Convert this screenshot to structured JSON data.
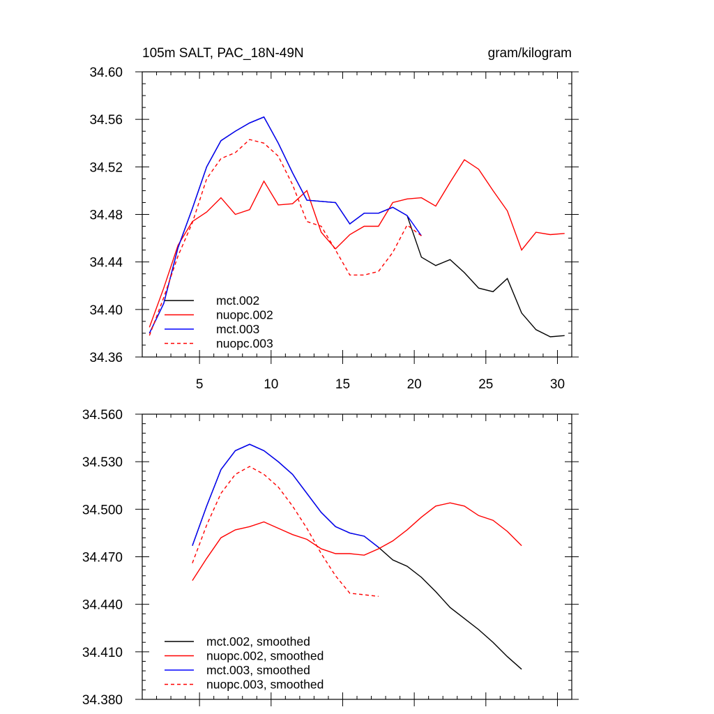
{
  "chart_data": [
    {
      "type": "line",
      "title_left": "105m SALT, PAC_18N-49N",
      "title_right": "gram/kilogram",
      "xlim": [
        1,
        31
      ],
      "ylim": [
        34.36,
        34.6
      ],
      "xticks": [
        5,
        10,
        15,
        20,
        25,
        30
      ],
      "yticks": [
        34.36,
        34.4,
        34.44,
        34.48,
        34.52,
        34.56,
        34.6
      ],
      "ytick_labels": [
        "34.36",
        "34.40",
        "34.44",
        "34.48",
        "34.52",
        "34.56",
        "34.60"
      ],
      "legend_position": "bottom-left",
      "series": [
        {
          "name": "mct.002",
          "color": "#000000",
          "dash": "solid",
          "x": [
            1.5,
            2.5,
            3.5,
            4.5,
            5.5,
            6.5,
            7.5,
            8.5,
            9.5,
            10.5,
            11.5,
            12.5,
            13.5,
            14.5,
            15.5,
            16.5,
            17.5,
            18.5,
            19.5,
            20.5,
            21.5,
            22.5,
            23.5,
            24.5,
            25.5,
            26.5,
            27.5,
            28.5,
            29.5,
            30.5
          ],
          "y": [
            34.38,
            34.405,
            34.452,
            34.485,
            34.52,
            34.542,
            34.55,
            34.557,
            34.562,
            34.54,
            34.515,
            34.492,
            34.491,
            34.49,
            34.472,
            34.481,
            34.481,
            34.486,
            34.479,
            34.444,
            34.437,
            34.442,
            34.431,
            34.418,
            34.415,
            34.426,
            34.397,
            34.383,
            34.377,
            34.378
          ]
        },
        {
          "name": "nuopc.002",
          "color": "#ff0000",
          "dash": "solid",
          "x": [
            1.5,
            2.5,
            3.5,
            4.5,
            5.5,
            6.5,
            7.5,
            8.5,
            9.5,
            10.5,
            11.5,
            12.5,
            13.5,
            14.5,
            15.5,
            16.5,
            17.5,
            18.5,
            19.5,
            20.5,
            21.5,
            22.5,
            23.5,
            24.5,
            25.5,
            26.5,
            27.5,
            28.5,
            29.5,
            30.5
          ],
          "y": [
            34.385,
            34.418,
            34.454,
            34.474,
            34.482,
            34.494,
            34.48,
            34.484,
            34.508,
            34.488,
            34.489,
            34.5,
            34.465,
            34.451,
            34.463,
            34.47,
            34.47,
            34.49,
            34.493,
            34.494,
            34.487,
            34.507,
            34.526,
            34.518,
            34.5,
            34.483,
            34.45,
            34.465,
            34.463,
            34.464
          ]
        },
        {
          "name": "mct.003",
          "color": "#0000ff",
          "dash": "solid",
          "x": [
            1.5,
            2.5,
            3.5,
            4.5,
            5.5,
            6.5,
            7.5,
            8.5,
            9.5,
            10.5,
            11.5,
            12.5,
            13.5,
            14.5,
            15.5,
            16.5,
            17.5,
            18.5,
            19.5,
            20.5
          ],
          "y": [
            34.38,
            34.405,
            34.452,
            34.485,
            34.52,
            34.542,
            34.55,
            34.557,
            34.562,
            34.54,
            34.515,
            34.492,
            34.491,
            34.49,
            34.472,
            34.481,
            34.481,
            34.486,
            34.479,
            34.462
          ]
        },
        {
          "name": "nuopc.003",
          "color": "#ff0000",
          "dash": "dashed",
          "x": [
            1.5,
            2.5,
            3.5,
            4.5,
            5.5,
            6.5,
            7.5,
            8.5,
            9.5,
            10.5,
            11.5,
            12.5,
            13.5,
            14.5,
            15.5,
            16.5,
            17.5,
            18.5,
            19.5,
            20.5
          ],
          "y": [
            34.378,
            34.41,
            34.445,
            34.473,
            34.51,
            34.527,
            34.532,
            34.543,
            34.54,
            34.529,
            34.505,
            34.474,
            34.47,
            34.45,
            34.429,
            34.429,
            34.432,
            34.448,
            34.471,
            34.462
          ]
        }
      ]
    },
    {
      "type": "line",
      "xlim": [
        1,
        31
      ],
      "ylim": [
        34.38,
        34.56
      ],
      "xticks": [
        5,
        10,
        15,
        20,
        25,
        30
      ],
      "yticks": [
        34.38,
        34.41,
        34.44,
        34.47,
        34.5,
        34.53,
        34.56
      ],
      "ytick_labels": [
        "34.380",
        "34.410",
        "34.440",
        "34.470",
        "34.500",
        "34.530",
        "34.560"
      ],
      "legend_position": "bottom-left",
      "series": [
        {
          "name": "mct.002, smoothed",
          "color": "#000000",
          "dash": "solid",
          "x": [
            4.5,
            5.5,
            6.5,
            7.5,
            8.5,
            9.5,
            10.5,
            11.5,
            12.5,
            13.5,
            14.5,
            15.5,
            16.5,
            17.5,
            18.5,
            19.5,
            20.5,
            21.5,
            22.5,
            23.5,
            24.5,
            25.5,
            26.5,
            27.5
          ],
          "y": [
            34.477,
            34.502,
            34.525,
            34.537,
            34.541,
            34.537,
            34.53,
            34.522,
            34.51,
            34.498,
            34.489,
            34.485,
            34.483,
            34.476,
            34.468,
            34.464,
            34.457,
            34.448,
            34.438,
            34.431,
            34.424,
            34.416,
            34.407,
            34.399
          ]
        },
        {
          "name": "nuopc.002, smoothed",
          "color": "#ff0000",
          "dash": "solid",
          "x": [
            4.5,
            5.5,
            6.5,
            7.5,
            8.5,
            9.5,
            10.5,
            11.5,
            12.5,
            13.5,
            14.5,
            15.5,
            16.5,
            17.5,
            18.5,
            19.5,
            20.5,
            21.5,
            22.5,
            23.5,
            24.5,
            25.5,
            26.5,
            27.5
          ],
          "y": [
            34.455,
            34.469,
            34.482,
            34.487,
            34.489,
            34.492,
            34.488,
            34.484,
            34.481,
            34.475,
            34.472,
            34.472,
            34.471,
            34.475,
            34.48,
            34.487,
            34.495,
            34.502,
            34.504,
            34.502,
            34.496,
            34.493,
            34.486,
            34.477
          ]
        },
        {
          "name": "mct.003, smoothed",
          "color": "#0000ff",
          "dash": "solid",
          "x": [
            4.5,
            5.5,
            6.5,
            7.5,
            8.5,
            9.5,
            10.5,
            11.5,
            12.5,
            13.5,
            14.5,
            15.5,
            16.5,
            17.5
          ],
          "y": [
            34.477,
            34.502,
            34.525,
            34.537,
            34.541,
            34.537,
            34.53,
            34.522,
            34.51,
            34.498,
            34.489,
            34.485,
            34.483,
            34.476
          ]
        },
        {
          "name": "nuopc.003, smoothed",
          "color": "#ff0000",
          "dash": "dashed",
          "x": [
            4.5,
            5.5,
            6.5,
            7.5,
            8.5,
            9.5,
            10.5,
            11.5,
            12.5,
            13.5,
            14.5,
            15.5,
            16.5,
            17.5
          ],
          "y": [
            34.466,
            34.49,
            34.51,
            34.522,
            34.527,
            34.522,
            34.514,
            34.502,
            34.488,
            34.472,
            34.458,
            34.447,
            34.446,
            34.445
          ]
        }
      ]
    }
  ]
}
